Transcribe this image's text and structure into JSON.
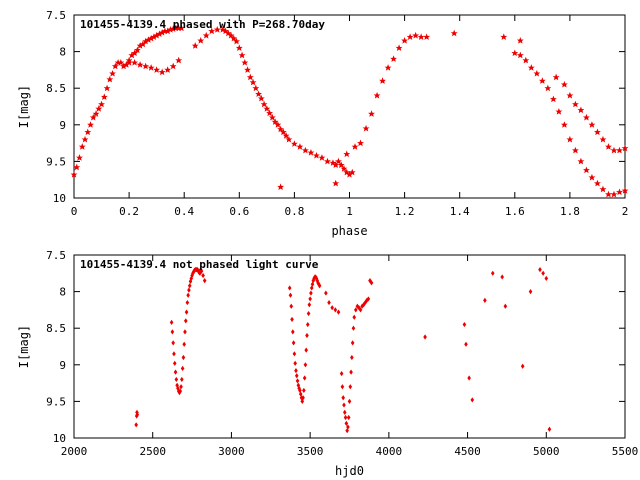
{
  "chart_data": [
    {
      "type": "scatter",
      "title": "101455-4139.4 phased with P=268.70day",
      "xlabel": "phase",
      "ylabel": "I[mag]",
      "xlim": [
        0,
        2
      ],
      "ylim": [
        7.5,
        10
      ],
      "y_inverted": true,
      "xticks": [
        "0",
        "0.2",
        "0.4",
        "0.6",
        "0.8",
        "1",
        "1.2",
        "1.4",
        "1.6",
        "1.8",
        "2"
      ],
      "yticks": [
        "7.5",
        "8",
        "8.5",
        "9",
        "9.5",
        "10"
      ],
      "grid": false,
      "marker_color": "#ee0000",
      "marker": "star",
      "series": [
        {
          "x": [
            0.0,
            0.01,
            0.02,
            0.03,
            0.04,
            0.05,
            0.06,
            0.07,
            0.08,
            0.09,
            0.1,
            0.11,
            0.12,
            0.13,
            0.14,
            0.15,
            0.16,
            0.17,
            0.18,
            0.19,
            0.2,
            0.21,
            0.22,
            0.23,
            0.24,
            0.25,
            0.26,
            0.27,
            0.28,
            0.29,
            0.3,
            0.31,
            0.32,
            0.33,
            0.34,
            0.35,
            0.36,
            0.37,
            0.38,
            0.39,
            0.2,
            0.22,
            0.24,
            0.26,
            0.28,
            0.3,
            0.32,
            0.34,
            0.36,
            0.38,
            0.44,
            0.46,
            0.48,
            0.5,
            0.52,
            0.54,
            0.55,
            0.56,
            0.57,
            0.58,
            0.59,
            0.6,
            0.61,
            0.62,
            0.63,
            0.64,
            0.65,
            0.66,
            0.67,
            0.68,
            0.69,
            0.7,
            0.71,
            0.72,
            0.73,
            0.74,
            0.75,
            0.76,
            0.77,
            0.78,
            0.8,
            0.82,
            0.84,
            0.86,
            0.88,
            0.9,
            0.92,
            0.94,
            0.95,
            0.96,
            0.97,
            0.98,
            0.99,
            1.0,
            1.01,
            0.75,
            0.95,
            0.99,
            1.02,
            1.04,
            1.06,
            1.08,
            1.1,
            1.12,
            1.14,
            1.16,
            1.18,
            1.2,
            1.22,
            1.24,
            1.26,
            1.28,
            1.38,
            1.56,
            1.62,
            1.6,
            1.62,
            1.64,
            1.66,
            1.68,
            1.7,
            1.72,
            1.74,
            1.76,
            1.78,
            1.8,
            1.82,
            1.84,
            1.86,
            1.88,
            1.9,
            1.92,
            1.94,
            1.96,
            1.98,
            2.0,
            1.75,
            1.78,
            1.8,
            1.82,
            1.84,
            1.86,
            1.88,
            1.9,
            1.92,
            1.94,
            1.96,
            1.98,
            2.0
          ],
          "y": [
            9.68,
            9.58,
            9.45,
            9.3,
            9.2,
            9.1,
            9.0,
            8.9,
            8.85,
            8.78,
            8.72,
            8.62,
            8.5,
            8.38,
            8.3,
            8.2,
            8.15,
            8.15,
            8.2,
            8.18,
            8.15,
            8.05,
            8.02,
            7.98,
            7.92,
            7.9,
            7.86,
            7.84,
            7.82,
            7.8,
            7.78,
            7.76,
            7.74,
            7.72,
            7.72,
            7.7,
            7.69,
            7.68,
            7.68,
            7.68,
            8.12,
            8.15,
            8.18,
            8.2,
            8.22,
            8.25,
            8.28,
            8.25,
            8.2,
            8.12,
            7.92,
            7.85,
            7.78,
            7.72,
            7.7,
            7.7,
            7.72,
            7.75,
            7.78,
            7.82,
            7.86,
            7.95,
            8.05,
            8.15,
            8.25,
            8.35,
            8.42,
            8.5,
            8.58,
            8.64,
            8.72,
            8.78,
            8.84,
            8.9,
            8.96,
            9.0,
            9.06,
            9.1,
            9.15,
            9.2,
            9.26,
            9.3,
            9.35,
            9.38,
            9.42,
            9.45,
            9.5,
            9.52,
            9.55,
            9.5,
            9.55,
            9.6,
            9.65,
            9.68,
            9.65,
            9.85,
            9.8,
            9.4,
            9.3,
            9.25,
            9.05,
            8.85,
            8.6,
            8.4,
            8.22,
            8.1,
            7.95,
            7.85,
            7.8,
            7.78,
            7.8,
            7.8,
            7.75,
            7.8,
            7.85,
            8.02,
            8.05,
            8.12,
            8.22,
            8.3,
            8.4,
            8.5,
            8.65,
            8.82,
            9.0,
            9.2,
            9.35,
            9.5,
            9.62,
            9.72,
            9.8,
            9.88,
            9.95,
            9.95,
            9.92,
            9.9,
            8.35,
            8.45,
            8.6,
            8.72,
            8.8,
            8.9,
            9.0,
            9.1,
            9.2,
            9.3,
            9.35,
            9.35,
            9.32
          ]
        }
      ]
    },
    {
      "type": "scatter",
      "title": "101455-4139.4 not phased light curve",
      "xlabel": "hjd0",
      "ylabel": "I[mag]",
      "xlim": [
        2000,
        5500
      ],
      "ylim": [
        7.5,
        10
      ],
      "y_inverted": true,
      "xticks": [
        "2000",
        "2500",
        "3000",
        "3500",
        "4000",
        "4500",
        "5000",
        "5500"
      ],
      "yticks": [
        "7.5",
        "8",
        "8.5",
        "9",
        "9.5",
        "10"
      ],
      "grid": false,
      "marker_color": "#ee0000",
      "marker": "diamond",
      "series": [
        {
          "x": [
            2395,
            2398,
            2400,
            2402,
            2620,
            2625,
            2630,
            2635,
            2640,
            2645,
            2650,
            2655,
            2660,
            2665,
            2670,
            2675,
            2680,
            2685,
            2690,
            2695,
            2700,
            2705,
            2710,
            2715,
            2720,
            2725,
            2730,
            2735,
            2740,
            2745,
            2750,
            2755,
            2760,
            2765,
            2770,
            2775,
            2780,
            2785,
            2790,
            2795,
            2800,
            2805,
            2810,
            2820,
            2830,
            3370,
            3375,
            3380,
            3385,
            3390,
            3395,
            3400,
            3405,
            3410,
            3415,
            3420,
            3425,
            3430,
            3435,
            3440,
            3445,
            3450,
            3455,
            3460,
            3465,
            3470,
            3475,
            3480,
            3485,
            3490,
            3495,
            3500,
            3505,
            3510,
            3515,
            3520,
            3525,
            3530,
            3535,
            3540,
            3545,
            3550,
            3555,
            3560,
            3600,
            3620,
            3640,
            3660,
            3680,
            3700,
            3705,
            3710,
            3715,
            3720,
            3725,
            3730,
            3735,
            3740,
            3745,
            3750,
            3755,
            3760,
            3765,
            3770,
            3775,
            3780,
            3790,
            3800,
            3810,
            3820,
            3830,
            3840,
            3850,
            3860,
            3870,
            3880,
            3890,
            4230,
            4480,
            4490,
            4510,
            4530,
            4610,
            4660,
            4720,
            4740,
            4850,
            4900,
            4960,
            4980,
            5000,
            5020
          ],
          "y": [
            9.82,
            9.7,
            9.65,
            9.68,
            8.42,
            8.55,
            8.7,
            8.85,
            8.98,
            9.1,
            9.2,
            9.28,
            9.32,
            9.36,
            9.38,
            9.36,
            9.3,
            9.2,
            9.05,
            8.9,
            8.72,
            8.55,
            8.4,
            8.28,
            8.15,
            8.05,
            7.98,
            7.92,
            7.86,
            7.82,
            7.78,
            7.75,
            7.73,
            7.71,
            7.7,
            7.7,
            7.7,
            7.7,
            7.72,
            7.74,
            7.75,
            7.7,
            7.72,
            7.78,
            7.85,
            7.95,
            8.05,
            8.2,
            8.38,
            8.55,
            8.7,
            8.85,
            8.98,
            9.08,
            9.15,
            9.22,
            9.28,
            9.32,
            9.35,
            9.4,
            9.45,
            9.5,
            9.45,
            9.35,
            9.18,
            9.0,
            8.8,
            8.6,
            8.45,
            8.3,
            8.18,
            8.1,
            8.02,
            7.95,
            7.9,
            7.85,
            7.82,
            7.8,
            7.8,
            7.82,
            7.85,
            7.88,
            7.9,
            7.92,
            8.02,
            8.15,
            8.22,
            8.25,
            8.28,
            9.12,
            9.3,
            9.45,
            9.55,
            9.65,
            9.72,
            9.8,
            9.9,
            9.85,
            9.72,
            9.5,
            9.3,
            9.1,
            8.9,
            8.7,
            8.5,
            8.35,
            8.25,
            8.2,
            8.22,
            8.25,
            8.2,
            8.18,
            8.15,
            8.12,
            8.1,
            7.85,
            7.88,
            8.62,
            8.45,
            8.72,
            9.18,
            9.48,
            8.12,
            7.75,
            7.8,
            8.2,
            9.02,
            8.0,
            7.7,
            7.75,
            7.82,
            9.88
          ]
        }
      ]
    }
  ]
}
